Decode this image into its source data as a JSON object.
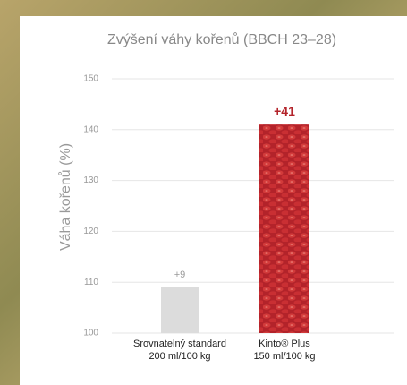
{
  "chart_data": {
    "type": "bar",
    "title": "Zvýšení váhy kořenů (BBCH 23–28)",
    "y_axis_label": "Váha kořenů (%)",
    "categories": [
      [
        "Srovnatelný standard",
        "200 ml/100 kg"
      ],
      [
        "Kinto® Plus",
        "150 ml/100 kg"
      ]
    ],
    "values": [
      109,
      141
    ],
    "annotations": [
      "+9",
      "+41"
    ],
    "colors": [
      "#dcdcdc",
      "#c0262b"
    ],
    "ylim": [
      100,
      150
    ],
    "yticks": [
      100,
      110,
      120,
      130,
      140,
      150
    ],
    "grid": true
  }
}
